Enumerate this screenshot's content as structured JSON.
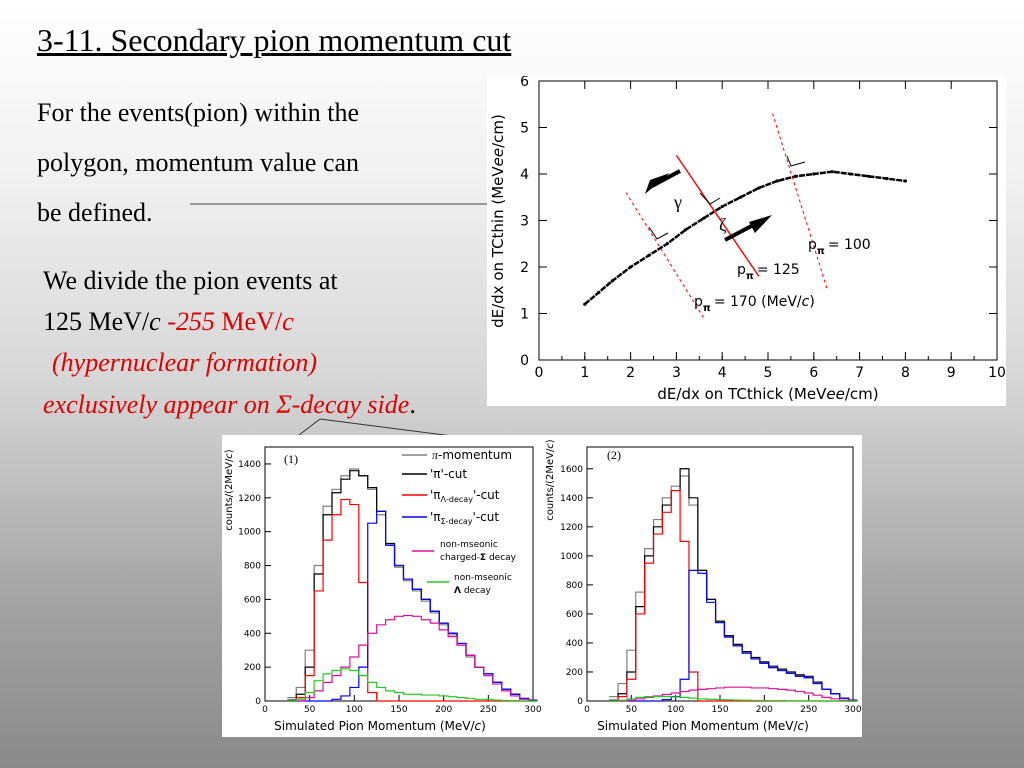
{
  "slide": {
    "title": "3-11.  Secondary pion momentum cut",
    "para1": [
      "For the events(pion) within the",
      "polygon,  momentum value can",
      "be defined."
    ],
    "para2_line1": "We divide the pion events at",
    "para2_line2_a": "125 MeV/",
    "para2_line2_b": "c",
    "para2_line2_c": " -255",
    "para2_line2_d": " MeV/",
    "para2_line2_e": "c",
    "para2_line3": "(hypernuclear formation)",
    "para2_line4_a": "exclusively appear on ",
    "para2_line4_b": "Σ",
    "para2_line4_c": "-decay side",
    "para2_line4_d": "."
  },
  "colors": {
    "red_text": "#e00000",
    "black": "#000000",
    "red": "#ff0000",
    "blue": "#0000ff",
    "magenta": "#e0109a",
    "green": "#22cc22",
    "gray": "#808080"
  },
  "top_plot": {
    "xlabel_a": "dE/dx on TCthick (MeV",
    "xlabel_b": "ee",
    "xlabel_c": "/cm)",
    "ylabel_a": "dE/dx on TCthin (MeV",
    "ylabel_b": "ee",
    "ylabel_c": "/cm)",
    "gamma": "γ",
    "zeta": "ζ",
    "p100": "= 100",
    "p125": "= 125",
    "p170": "= 170 (MeV/",
    "p170_c": "c",
    "p170_end": ")",
    "p_letter": "p",
    "pi_sub": "π"
  },
  "chart_data": [
    {
      "type": "scatter",
      "title": "",
      "xlabel": "dE/dx on TCthick (MeVee/cm)",
      "ylabel": "dE/dx on TCthin (MeVee/cm)",
      "xlim": [
        0,
        10
      ],
      "ylim": [
        0,
        6
      ],
      "x_ticks": [
        0,
        1,
        2,
        3,
        4,
        5,
        6,
        7,
        8,
        9,
        10
      ],
      "y_ticks": [
        0,
        1,
        2,
        3,
        4,
        5,
        6
      ],
      "series": [
        {
          "x": [
            1.0,
            1.3,
            1.6,
            2.0,
            2.4,
            2.8,
            3.2,
            3.6,
            4.0,
            4.4,
            4.8,
            5.2,
            5.6,
            6.0,
            6.4,
            6.8,
            7.2,
            7.6,
            8.0
          ],
          "y": [
            1.2,
            1.45,
            1.7,
            2.0,
            2.25,
            2.5,
            2.8,
            3.05,
            3.3,
            3.5,
            3.7,
            3.85,
            3.95,
            4.0,
            4.05,
            4.0,
            3.95,
            3.9,
            3.85
          ]
        }
      ],
      "cut_lines": [
        {
          "label": "pπ = 100",
          "x1": 5.1,
          "y1": 5.3,
          "x2": 6.3,
          "y2": 1.5
        },
        {
          "label": "pπ = 125",
          "x1": 3.0,
          "y1": 4.4,
          "x2": 4.8,
          "y2": 1.8
        },
        {
          "label": "pπ = 170 (MeV/c)",
          "x1": 1.9,
          "y1": 3.6,
          "x2": 3.6,
          "y2": 0.9
        }
      ]
    },
    {
      "type": "line",
      "title": "",
      "panel_label": "(1)",
      "xlabel": "Simulated Pion Momentum (MeV/c)",
      "ylabel": "counts/(2MeV/c)",
      "xlim": [
        0,
        300
      ],
      "ylim": [
        0,
        1500
      ],
      "x_ticks": [
        0,
        50,
        100,
        150,
        200,
        250,
        300
      ],
      "y_ticks": [
        0,
        200,
        400,
        600,
        800,
        1000,
        1200,
        1400
      ],
      "x": [
        30,
        40,
        50,
        60,
        70,
        80,
        90,
        100,
        110,
        120,
        130,
        140,
        150,
        160,
        170,
        180,
        190,
        200,
        210,
        220,
        230,
        240,
        250,
        260,
        270,
        280,
        290,
        300
      ],
      "series": [
        {
          "name": "π-momentum",
          "color": "gray",
          "values": [
            20,
            80,
            300,
            800,
            1150,
            1250,
            1330,
            1370,
            1330,
            1250,
            1100,
            920,
            790,
            710,
            650,
            590,
            520,
            450,
            390,
            330,
            260,
            200,
            160,
            110,
            70,
            40,
            15,
            5
          ]
        },
        {
          "name": "'π'-cut",
          "color": "black",
          "values": [
            5,
            40,
            200,
            750,
            1100,
            1230,
            1310,
            1360,
            1330,
            1260,
            1120,
            930,
            800,
            720,
            660,
            600,
            530,
            460,
            400,
            340,
            270,
            200,
            160,
            110,
            70,
            40,
            15,
            5
          ]
        },
        {
          "name": "'πΛ-decay'-cut",
          "color": "red",
          "values": [
            0,
            20,
            150,
            650,
            950,
            1100,
            1190,
            1160,
            700,
            50,
            0,
            0,
            0,
            0,
            0,
            0,
            0,
            0,
            0,
            0,
            0,
            0,
            0,
            0,
            0,
            0,
            0,
            0
          ]
        },
        {
          "name": "'πΣ-decay'-cut",
          "color": "blue",
          "values": [
            0,
            0,
            0,
            0,
            0,
            10,
            30,
            80,
            200,
            1050,
            1120,
            920,
            800,
            720,
            660,
            600,
            530,
            460,
            400,
            340,
            270,
            200,
            160,
            110,
            70,
            40,
            15,
            5
          ]
        },
        {
          "name": "non-mseonic charged-Σ decay",
          "color": "magenta",
          "values": [
            0,
            0,
            20,
            60,
            110,
            150,
            200,
            260,
            330,
            400,
            450,
            480,
            500,
            505,
            500,
            480,
            460,
            420,
            380,
            330,
            270,
            200,
            150,
            100,
            60,
            30,
            10,
            0
          ]
        },
        {
          "name": "non-mseonic Λ decay",
          "color": "green",
          "values": [
            0,
            10,
            50,
            120,
            160,
            180,
            190,
            180,
            150,
            110,
            80,
            60,
            50,
            40,
            40,
            35,
            35,
            30,
            25,
            20,
            15,
            10,
            10,
            5,
            3,
            2,
            0,
            0
          ]
        }
      ]
    },
    {
      "type": "line",
      "title": "",
      "panel_label": "(2)",
      "xlabel": "Simulated Pion Momentum (MeV/c)",
      "ylabel": "counts/(2MeV/c)",
      "xlim": [
        0,
        300
      ],
      "ylim": [
        0,
        1750
      ],
      "x_ticks": [
        0,
        50,
        100,
        150,
        200,
        250,
        300
      ],
      "y_ticks": [
        0,
        200,
        400,
        600,
        800,
        1000,
        1200,
        1400,
        1600
      ],
      "x": [
        30,
        40,
        50,
        60,
        70,
        80,
        90,
        100,
        110,
        120,
        130,
        140,
        150,
        160,
        170,
        180,
        190,
        200,
        210,
        220,
        230,
        240,
        250,
        260,
        270,
        280,
        290,
        300
      ],
      "series": [
        {
          "name": "π-momentum",
          "color": "gray",
          "values": [
            30,
            120,
            350,
            750,
            1050,
            1250,
            1400,
            1480,
            1550,
            1350,
            900,
            700,
            550,
            450,
            380,
            330,
            290,
            260,
            230,
            210,
            190,
            170,
            160,
            120,
            80,
            50,
            20,
            5
          ]
        },
        {
          "name": "'π'-cut",
          "color": "black",
          "values": [
            5,
            50,
            200,
            650,
            1000,
            1200,
            1350,
            1450,
            1600,
            1400,
            900,
            700,
            550,
            450,
            390,
            340,
            300,
            270,
            240,
            220,
            200,
            180,
            170,
            130,
            80,
            50,
            20,
            5
          ]
        },
        {
          "name": "'πΛ-decay'-cut",
          "color": "red",
          "values": [
            0,
            30,
            150,
            600,
            950,
            1150,
            1300,
            1450,
            1100,
            200,
            0,
            0,
            0,
            0,
            0,
            0,
            0,
            0,
            0,
            0,
            0,
            0,
            0,
            0,
            0,
            0,
            0,
            0
          ]
        },
        {
          "name": "'πΣ-decay'-cut",
          "color": "blue",
          "values": [
            0,
            0,
            0,
            0,
            0,
            0,
            10,
            30,
            150,
            900,
            880,
            680,
            540,
            440,
            380,
            330,
            290,
            260,
            230,
            210,
            190,
            170,
            160,
            120,
            80,
            50,
            20,
            5
          ]
        },
        {
          "name": "non-mseonic charged-Σ decay",
          "color": "magenta",
          "values": [
            0,
            0,
            5,
            15,
            25,
            35,
            45,
            55,
            65,
            75,
            80,
            85,
            90,
            95,
            95,
            95,
            90,
            90,
            85,
            80,
            75,
            65,
            55,
            40,
            25,
            15,
            5,
            0
          ]
        },
        {
          "name": "non-mseonic Λ decay",
          "color": "green",
          "values": [
            0,
            5,
            15,
            25,
            30,
            30,
            30,
            28,
            25,
            20,
            15,
            12,
            10,
            8,
            6,
            5,
            4,
            3,
            2,
            2,
            1,
            1,
            1,
            0,
            0,
            0,
            0,
            0
          ]
        }
      ]
    }
  ],
  "legend": {
    "pi_momentum": "-momentum",
    "pi_cut": "'π'-cut",
    "lambda_cut_a": "'π",
    "lambda_cut_sub": "Λ-decay",
    "lambda_cut_b": "'-cut",
    "sigma_cut_a": "'π",
    "sigma_cut_sub": "Σ-decay",
    "sigma_cut_b": "'-cut",
    "nm_sigma_1": "non-mseonic",
    "nm_sigma_2": "charged-",
    "nm_sigma_3": "Σ",
    "nm_sigma_4": " decay",
    "nm_lambda_1": "non-mseonic",
    "nm_lambda_2": "Λ",
    "nm_lambda_3": " decay"
  },
  "bottom_plots": {
    "ylabel": "counts/(2MeV/",
    "ylabel_c": "c",
    "ylabel_end": ")",
    "xlabel": "Simulated Pion Momentum (MeV/",
    "xlabel_c": "c",
    "xlabel_end": ")"
  }
}
